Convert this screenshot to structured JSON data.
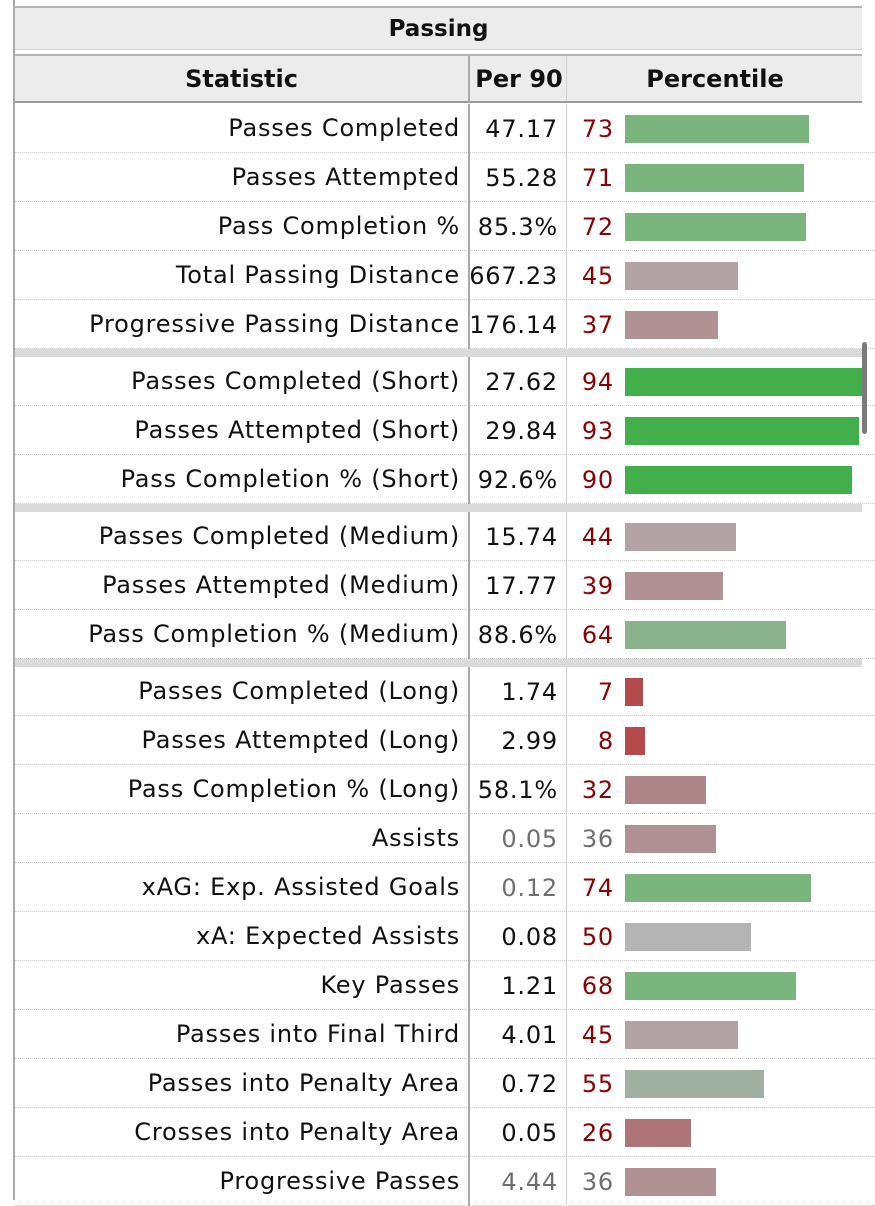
{
  "title": "Passing",
  "columns": {
    "statistic": "Statistic",
    "per90": "Per 90",
    "percentile": "Percentile"
  },
  "colors": {
    "percentile_text": "#8b0000",
    "muted_text": "#6f6f6f"
  },
  "groups": [
    {
      "rows": [
        {
          "stat": "Passes Completed",
          "per90": "47.17",
          "percentile": "73",
          "bar_color": "#7ab57d"
        },
        {
          "stat": "Passes Attempted",
          "per90": "55.28",
          "percentile": "71",
          "bar_color": "#7ab57d"
        },
        {
          "stat": "Pass Completion %",
          "per90": "85.3%",
          "percentile": "72",
          "bar_color": "#7ab57d"
        },
        {
          "stat": "Total Passing Distance",
          "per90": "667.23",
          "percentile": "45",
          "bar_color": "#b3a3a6"
        },
        {
          "stat": "Progressive Passing Distance",
          "per90": "176.14",
          "percentile": "37",
          "bar_color": "#b09294"
        }
      ]
    },
    {
      "rows": [
        {
          "stat": "Passes Completed (Short)",
          "per90": "27.62",
          "percentile": "94",
          "bar_color": "#42b04a"
        },
        {
          "stat": "Passes Attempted (Short)",
          "per90": "29.84",
          "percentile": "93",
          "bar_color": "#42b04a"
        },
        {
          "stat": "Pass Completion % (Short)",
          "per90": "92.6%",
          "percentile": "90",
          "bar_color": "#42b04a"
        }
      ]
    },
    {
      "rows": [
        {
          "stat": "Passes Completed (Medium)",
          "per90": "15.74",
          "percentile": "44",
          "bar_color": "#b3a3a6"
        },
        {
          "stat": "Passes Attempted (Medium)",
          "per90": "17.77",
          "percentile": "39",
          "bar_color": "#b09294"
        },
        {
          "stat": "Pass Completion % (Medium)",
          "per90": "88.6%",
          "percentile": "64",
          "bar_color": "#8ab38b"
        }
      ]
    },
    {
      "rows": [
        {
          "stat": "Passes Completed (Long)",
          "per90": "1.74",
          "percentile": "7",
          "bar_color": "#b54a4c"
        },
        {
          "stat": "Passes Attempted (Long)",
          "per90": "2.99",
          "percentile": "8",
          "bar_color": "#b54a4c"
        },
        {
          "stat": "Pass Completion % (Long)",
          "per90": "58.1%",
          "percentile": "32",
          "bar_color": "#ae8587"
        },
        {
          "stat": "Assists",
          "per90": "0.05",
          "percentile": "36",
          "bar_color": "#b09294",
          "muted": true
        },
        {
          "stat": "xAG: Exp. Assisted Goals",
          "per90": "0.12",
          "percentile": "74",
          "bar_color": "#7ab57d",
          "muted_per90": true
        },
        {
          "stat": "xA: Expected Assists",
          "per90": "0.08",
          "percentile": "50",
          "bar_color": "#b4b4b4"
        },
        {
          "stat": "Key Passes",
          "per90": "1.21",
          "percentile": "68",
          "bar_color": "#7ab57d"
        },
        {
          "stat": "Passes into Final Third",
          "per90": "4.01",
          "percentile": "45",
          "bar_color": "#b3a3a6"
        },
        {
          "stat": "Passes into Penalty Area",
          "per90": "0.72",
          "percentile": "55",
          "bar_color": "#a0b0a0"
        },
        {
          "stat": "Crosses into Penalty Area",
          "per90": "0.05",
          "percentile": "26",
          "bar_color": "#ad7577"
        },
        {
          "stat": "Progressive Passes",
          "per90": "4.44",
          "percentile": "36",
          "bar_color": "#b09294",
          "muted": true
        }
      ]
    }
  ]
}
